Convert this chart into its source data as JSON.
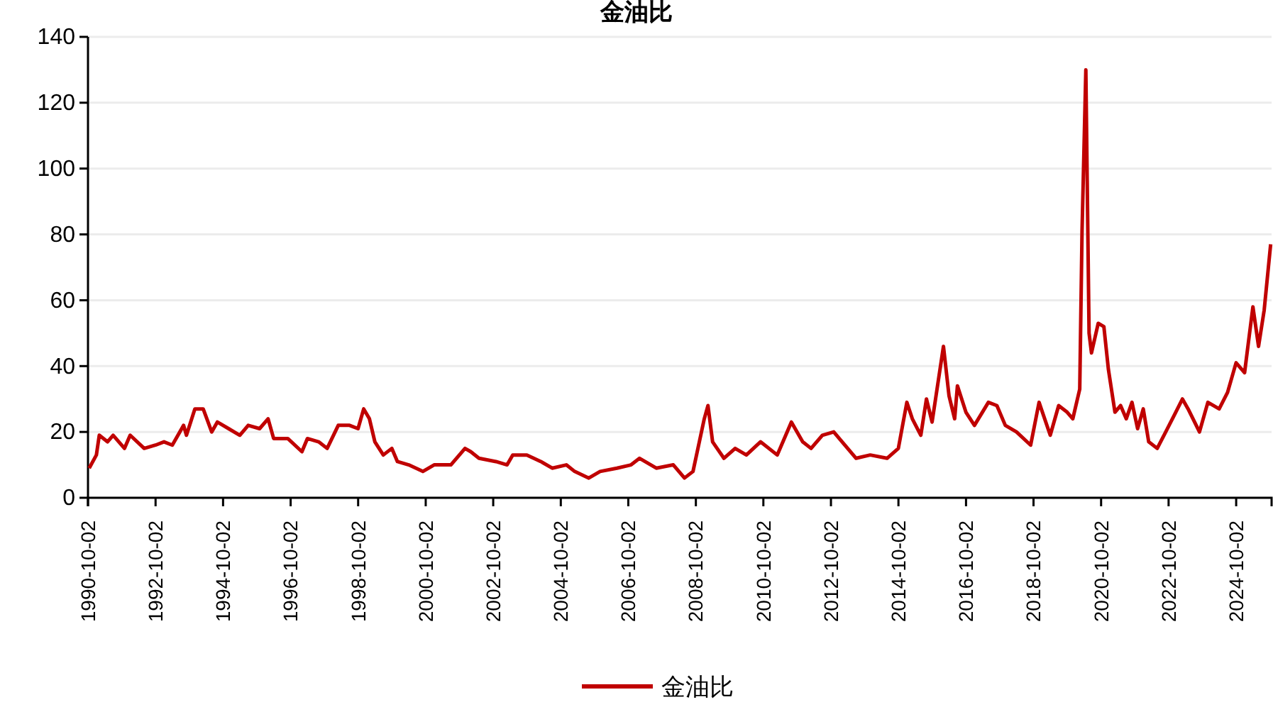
{
  "chart_data": {
    "type": "line",
    "title": "金油比",
    "x": [
      "1990-10-15",
      "1991-01",
      "1991-02",
      "1991-05",
      "1991-07",
      "1991-11",
      "1992-01",
      "1992-06",
      "1992-10",
      "1993-01",
      "1993-04",
      "1993-08",
      "1993-09",
      "1993-12",
      "1994-03",
      "1994-06",
      "1994-08",
      "1994-12",
      "1995-04",
      "1995-07",
      "1995-11",
      "1996-02",
      "1996-04",
      "1996-09",
      "1997-02",
      "1997-04",
      "1997-08",
      "1997-11",
      "1998-03",
      "1998-07",
      "1998-10",
      "1998-12",
      "1999-02",
      "1999-04",
      "1999-07",
      "1999-10",
      "1999-12",
      "2000-04",
      "2000-09",
      "2001-01",
      "2001-07",
      "2001-12",
      "2002-02",
      "2002-05",
      "2002-11",
      "2003-03",
      "2003-05",
      "2003-10",
      "2004-03",
      "2004-07",
      "2004-12",
      "2005-03",
      "2005-08",
      "2005-12",
      "2006-06",
      "2006-11",
      "2007-02",
      "2007-08",
      "2008-02",
      "2008-06",
      "2008-09",
      "2009-01-01",
      "2009-02-10",
      "2009-04",
      "2009-08",
      "2009-12",
      "2010-04",
      "2010-09",
      "2011-03",
      "2011-08",
      "2011-12",
      "2012-03",
      "2012-07",
      "2012-11",
      "2013-03",
      "2013-07",
      "2013-12",
      "2014-06",
      "2014-10",
      "2015-01",
      "2015-03",
      "2015-06",
      "2015-08",
      "2015-10",
      "2016-02",
      "2016-04",
      "2016-06",
      "2016-07",
      "2016-10",
      "2017-01",
      "2017-06",
      "2017-09",
      "2017-12",
      "2018-04",
      "2018-09",
      "2018-12",
      "2019-04",
      "2019-07",
      "2019-10",
      "2019-12",
      "2020-02-14",
      "2020-03-10",
      "2020-04-20",
      "2020-05-25",
      "2020-06-20",
      "2020-09",
      "2020-11",
      "2020-12-20",
      "2021-03",
      "2021-05",
      "2021-07",
      "2021-09",
      "2021-11",
      "2022-01",
      "2022-03",
      "2022-06",
      "2022-09",
      "2022-12",
      "2023-03",
      "2023-05",
      "2023-09",
      "2023-12",
      "2024-04",
      "2024-07",
      "2024-10",
      "2025-01",
      "2025-04",
      "2025-06",
      "2025-08",
      "2025-10-10"
    ],
    "series": [
      {
        "name": "金油比",
        "color": "#c00000",
        "values": [
          9,
          13,
          19,
          17,
          19,
          15,
          19,
          15,
          16,
          17,
          16,
          22,
          19,
          27,
          27,
          20,
          23,
          21,
          19,
          22,
          21,
          24,
          18,
          18,
          14,
          18,
          17,
          15,
          22,
          22,
          21,
          27,
          24,
          17,
          13,
          15,
          11,
          10,
          8,
          10,
          10,
          15,
          14,
          12,
          11,
          10,
          13,
          13,
          11,
          9,
          10,
          8,
          6,
          8,
          9,
          10,
          12,
          9,
          10,
          6,
          8,
          24,
          28,
          17,
          12,
          15,
          13,
          17,
          13,
          23,
          17,
          15,
          19,
          20,
          16,
          12,
          13,
          12,
          15,
          29,
          24,
          19,
          30,
          23,
          46,
          31,
          24,
          34,
          26,
          22,
          29,
          28,
          22,
          20,
          16,
          29,
          19,
          28,
          26,
          24,
          33,
          81,
          130,
          50,
          44,
          53,
          52,
          39,
          26,
          28,
          24,
          29,
          21,
          27,
          17,
          15,
          20,
          25,
          30,
          27,
          20,
          29,
          27,
          32,
          41,
          38,
          58,
          46,
          57,
          77
        ]
      }
    ],
    "xlim": [
      "1990-10-02",
      "2025-10-20"
    ],
    "xticks": [
      "1990-10-02",
      "1992-10-02",
      "1994-10-02",
      "1996-10-02",
      "1998-10-02",
      "2000-10-02",
      "2002-10-02",
      "2004-10-02",
      "2006-10-02",
      "2008-10-02",
      "2010-10-02",
      "2012-10-02",
      "2014-10-02",
      "2016-10-02",
      "2018-10-02",
      "2020-10-02",
      "2022-10-02",
      "2024-10-02"
    ],
    "ylim": [
      0,
      140
    ],
    "yticks": [
      0,
      20,
      40,
      60,
      80,
      100,
      120,
      140
    ],
    "grid": "y",
    "legend": "bottom",
    "line_style": "solid"
  }
}
